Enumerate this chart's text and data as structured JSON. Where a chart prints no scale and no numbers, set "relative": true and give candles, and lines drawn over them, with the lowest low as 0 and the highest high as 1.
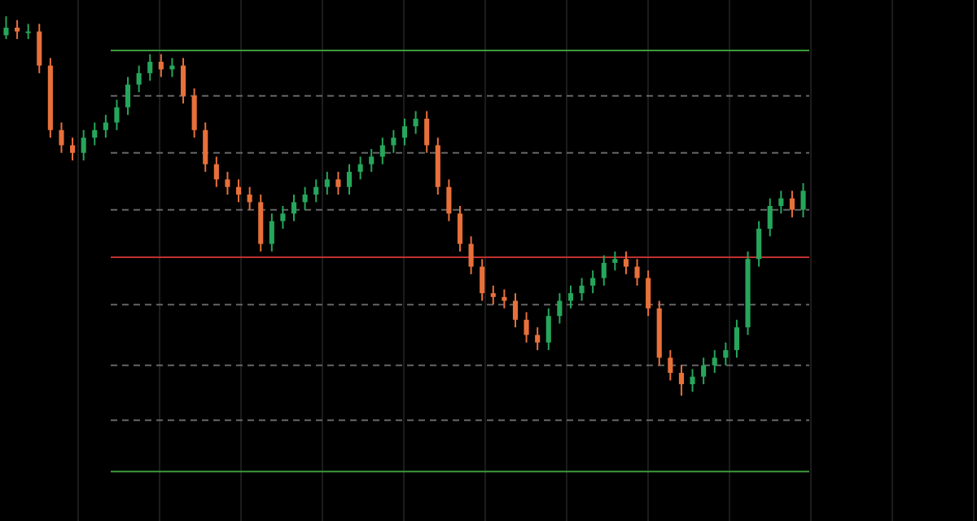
{
  "chart_data": {
    "type": "candlestick",
    "relative": true,
    "grid": "x",
    "categories": [
      null,
      null,
      null,
      null,
      null,
      null,
      null,
      null,
      null,
      null,
      null,
      null,
      null,
      null,
      null,
      null,
      null,
      null,
      null,
      null,
      null,
      null,
      null,
      null,
      null,
      null,
      null,
      null,
      null,
      null,
      null,
      null,
      null,
      null,
      null,
      null,
      null,
      null,
      null,
      null,
      null,
      null,
      null,
      null,
      null,
      null,
      null,
      null,
      null,
      null,
      null,
      null,
      null,
      null,
      null,
      null,
      null,
      null,
      null,
      null,
      null,
      null,
      null,
      null,
      null,
      null,
      null,
      null,
      null,
      null,
      null,
      null,
      null
    ],
    "ohlc": [
      [
        0.95,
        1,
        0.94,
        0.97
      ],
      [
        0.97,
        0.99,
        0.94,
        0.96
      ],
      [
        0.96,
        0.98,
        0.94,
        0.96
      ],
      [
        0.96,
        0.98,
        0.85,
        0.87
      ],
      [
        0.87,
        0.89,
        0.68,
        0.7
      ],
      [
        0.7,
        0.72,
        0.64,
        0.66
      ],
      [
        0.66,
        0.68,
        0.62,
        0.64
      ],
      [
        0.64,
        0.7,
        0.62,
        0.68
      ],
      [
        0.68,
        0.72,
        0.66,
        0.7
      ],
      [
        0.7,
        0.74,
        0.68,
        0.72
      ],
      [
        0.72,
        0.78,
        0.7,
        0.76
      ],
      [
        0.76,
        0.84,
        0.74,
        0.82
      ],
      [
        0.82,
        0.87,
        0.8,
        0.85
      ],
      [
        0.85,
        0.9,
        0.83,
        0.88
      ],
      [
        0.88,
        0.9,
        0.84,
        0.86
      ],
      [
        0.86,
        0.89,
        0.84,
        0.87
      ],
      [
        0.87,
        0.89,
        0.77,
        0.79
      ],
      [
        0.79,
        0.81,
        0.68,
        0.7
      ],
      [
        0.7,
        0.72,
        0.59,
        0.61
      ],
      [
        0.61,
        0.63,
        0.55,
        0.57
      ],
      [
        0.57,
        0.59,
        0.53,
        0.55
      ],
      [
        0.55,
        0.57,
        0.51,
        0.53
      ],
      [
        0.53,
        0.55,
        0.49,
        0.51
      ],
      [
        0.51,
        0.53,
        0.38,
        0.4
      ],
      [
        0.4,
        0.48,
        0.38,
        0.46
      ],
      [
        0.46,
        0.5,
        0.44,
        0.48
      ],
      [
        0.48,
        0.53,
        0.46,
        0.51
      ],
      [
        0.51,
        0.55,
        0.49,
        0.53
      ],
      [
        0.53,
        0.57,
        0.51,
        0.55
      ],
      [
        0.55,
        0.59,
        0.53,
        0.57
      ],
      [
        0.57,
        0.59,
        0.53,
        0.55
      ],
      [
        0.55,
        0.61,
        0.53,
        0.59
      ],
      [
        0.59,
        0.63,
        0.57,
        0.61
      ],
      [
        0.61,
        0.65,
        0.59,
        0.63
      ],
      [
        0.63,
        0.68,
        0.61,
        0.66
      ],
      [
        0.66,
        0.7,
        0.64,
        0.68
      ],
      [
        0.68,
        0.73,
        0.66,
        0.71
      ],
      [
        0.71,
        0.75,
        0.69,
        0.73
      ],
      [
        0.73,
        0.75,
        0.64,
        0.66
      ],
      [
        0.66,
        0.68,
        0.53,
        0.55
      ],
      [
        0.55,
        0.57,
        0.46,
        0.48
      ],
      [
        0.48,
        0.5,
        0.38,
        0.4
      ],
      [
        0.4,
        0.42,
        0.32,
        0.34
      ],
      [
        0.34,
        0.36,
        0.25,
        0.27
      ],
      [
        0.27,
        0.29,
        0.24,
        0.26
      ],
      [
        0.26,
        0.28,
        0.23,
        0.25
      ],
      [
        0.25,
        0.27,
        0.18,
        0.2
      ],
      [
        0.2,
        0.22,
        0.14,
        0.16
      ],
      [
        0.16,
        0.18,
        0.12,
        0.14
      ],
      [
        0.14,
        0.23,
        0.12,
        0.21
      ],
      [
        0.21,
        0.27,
        0.19,
        0.25
      ],
      [
        0.25,
        0.29,
        0.23,
        0.27
      ],
      [
        0.27,
        0.31,
        0.25,
        0.29
      ],
      [
        0.29,
        0.33,
        0.27,
        0.31
      ],
      [
        0.31,
        0.37,
        0.29,
        0.35
      ],
      [
        0.35,
        0.38,
        0.33,
        0.36
      ],
      [
        0.36,
        0.38,
        0.32,
        0.34
      ],
      [
        0.34,
        0.36,
        0.29,
        0.31
      ],
      [
        0.31,
        0.33,
        0.21,
        0.23
      ],
      [
        0.23,
        0.25,
        0.08,
        0.1
      ],
      [
        0.1,
        0.12,
        0.04,
        0.06
      ],
      [
        0.06,
        0.08,
        0,
        0.03
      ],
      [
        0.03,
        0.07,
        0.01,
        0.05
      ],
      [
        0.05,
        0.1,
        0.03,
        0.08
      ],
      [
        0.08,
        0.12,
        0.06,
        0.1
      ],
      [
        0.1,
        0.14,
        0.08,
        0.12
      ],
      [
        0.12,
        0.2,
        0.1,
        0.18
      ],
      [
        0.18,
        0.38,
        0.16,
        0.36
      ],
      [
        0.36,
        0.46,
        0.34,
        0.44
      ],
      [
        0.44,
        0.52,
        0.42,
        0.5
      ],
      [
        0.5,
        0.54,
        0.48,
        0.52
      ],
      [
        0.52,
        0.54,
        0.47,
        0.49
      ],
      [
        0.49,
        0.56,
        0.47,
        0.54
      ]
    ],
    "ref_lines": [
      {
        "axis": "y",
        "value": 0.91,
        "color": "#3c9a3c",
        "line_style": "solid"
      },
      {
        "axis": "y",
        "value": 0.79,
        "color": "#666666",
        "line_style": "dashed"
      },
      {
        "axis": "y",
        "value": 0.64,
        "color": "#666666",
        "line_style": "dashed"
      },
      {
        "axis": "y",
        "value": 0.49,
        "color": "#666666",
        "line_style": "dashed"
      },
      {
        "axis": "y",
        "value": 0.365,
        "color": "#c03030",
        "line_style": "solid"
      },
      {
        "axis": "y",
        "value": 0.24,
        "color": "#666666",
        "line_style": "dashed"
      },
      {
        "axis": "y",
        "value": 0.08,
        "color": "#666666",
        "line_style": "dashed"
      },
      {
        "axis": "y",
        "value": -0.065,
        "color": "#666666",
        "line_style": "dashed"
      },
      {
        "axis": "y",
        "value": -0.2,
        "color": "#3c9a3c",
        "line_style": "solid"
      }
    ]
  }
}
